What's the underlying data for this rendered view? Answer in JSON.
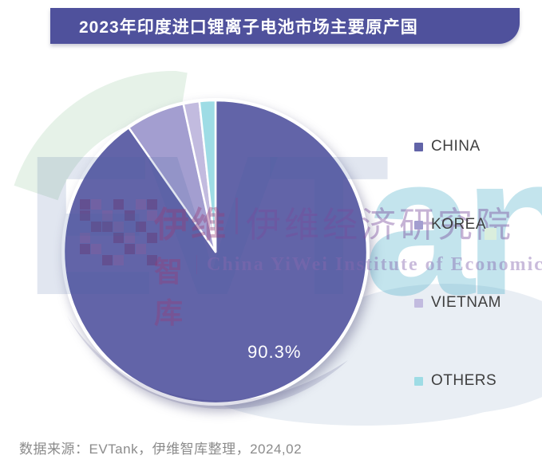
{
  "banner": {
    "title": "2023年印度进口锂离子电池市场主要原产国",
    "bg_color": "#4f519c",
    "text_color": "#ffffff"
  },
  "chart_data": {
    "type": "pie",
    "title": "2023年印度进口锂离子电池市场主要原产国",
    "categories": [
      "CHINA",
      "KOREA",
      "VIETNAM",
      "OTHERS"
    ],
    "values": [
      90.3,
      6.3,
      1.7,
      1.7
    ],
    "values_note": "only the CHINA slice is labeled in the image (90.3%); other slice values estimated from arc angles",
    "colors": [
      "#6264a8",
      "#a39ed0",
      "#c2bbdf",
      "#9edce5"
    ],
    "start_angle_deg": 0,
    "direction": "clockwise",
    "legend_position": "right",
    "data_labels": [
      {
        "series": "CHINA",
        "text": "90.3%",
        "color": "#ffffff"
      }
    ]
  },
  "footer": {
    "source_text": "数据来源：EVTank，伊维智库整理，2024,02"
  },
  "watermark": {
    "evt": "EVT",
    "ank": "ank",
    "cn_left_top": "伊维",
    "cn_right_top": "伊维经济研究院",
    "cn_left_bottom": "智库",
    "cn_right_bottom": "China YiWei Institute of Economics"
  }
}
